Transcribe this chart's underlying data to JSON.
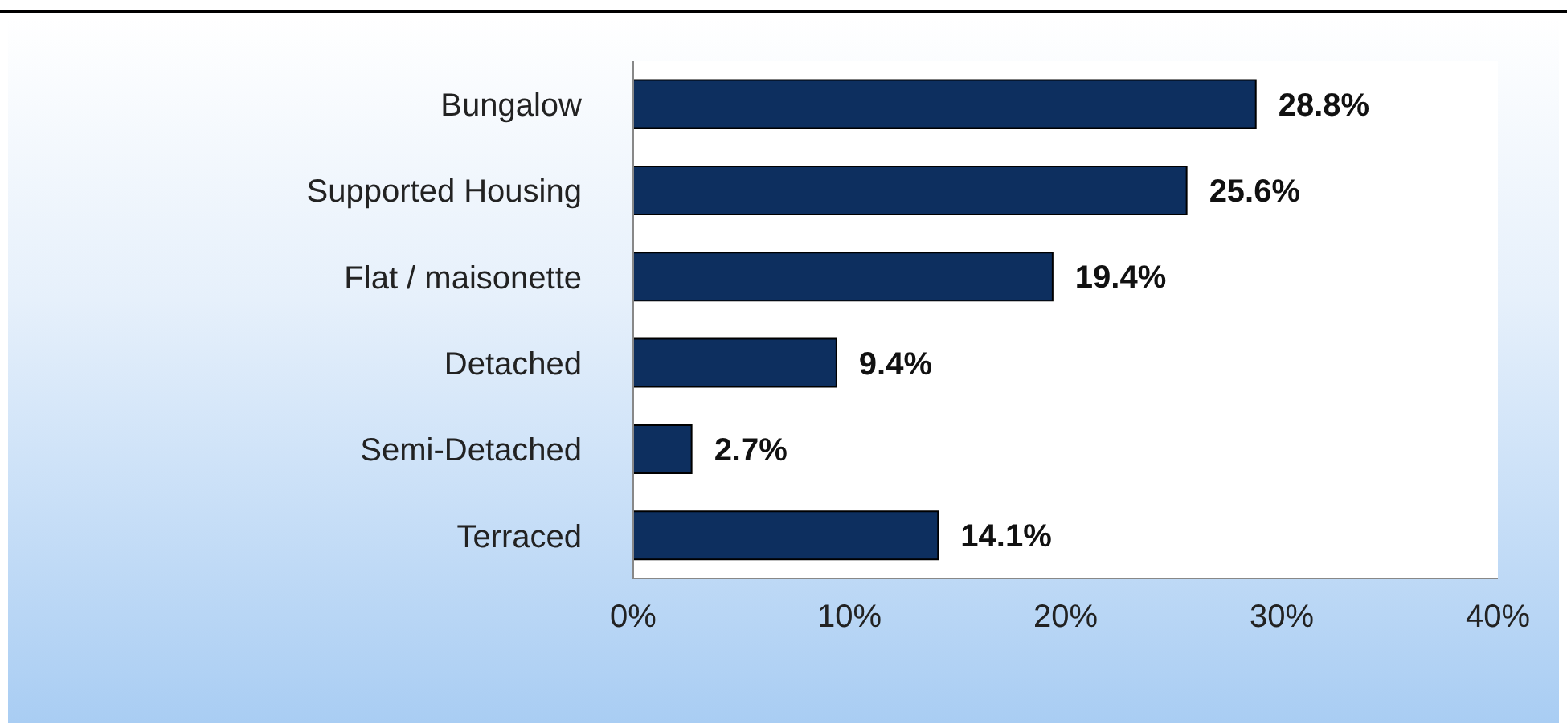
{
  "chart_data": {
    "type": "bar",
    "orientation": "horizontal",
    "categories": [
      "Bungalow",
      "Supported Housing",
      "Flat / maisonette",
      "Detached",
      "Semi-Detached",
      "Terraced"
    ],
    "values": [
      28.8,
      25.6,
      19.4,
      9.4,
      2.7,
      14.1
    ],
    "value_labels": [
      "28.8%",
      "25.6%",
      "19.4%",
      "9.4%",
      "2.7%",
      "14.1%"
    ],
    "color": "#0d2f5f",
    "xlim": [
      0,
      40
    ],
    "xticks": [
      {
        "value": 0,
        "label": "0%"
      },
      {
        "value": 10,
        "label": "10%"
      },
      {
        "value": 20,
        "label": "20%"
      },
      {
        "value": 30,
        "label": "30%"
      },
      {
        "value": 40,
        "label": "40%"
      }
    ],
    "grid": false
  }
}
